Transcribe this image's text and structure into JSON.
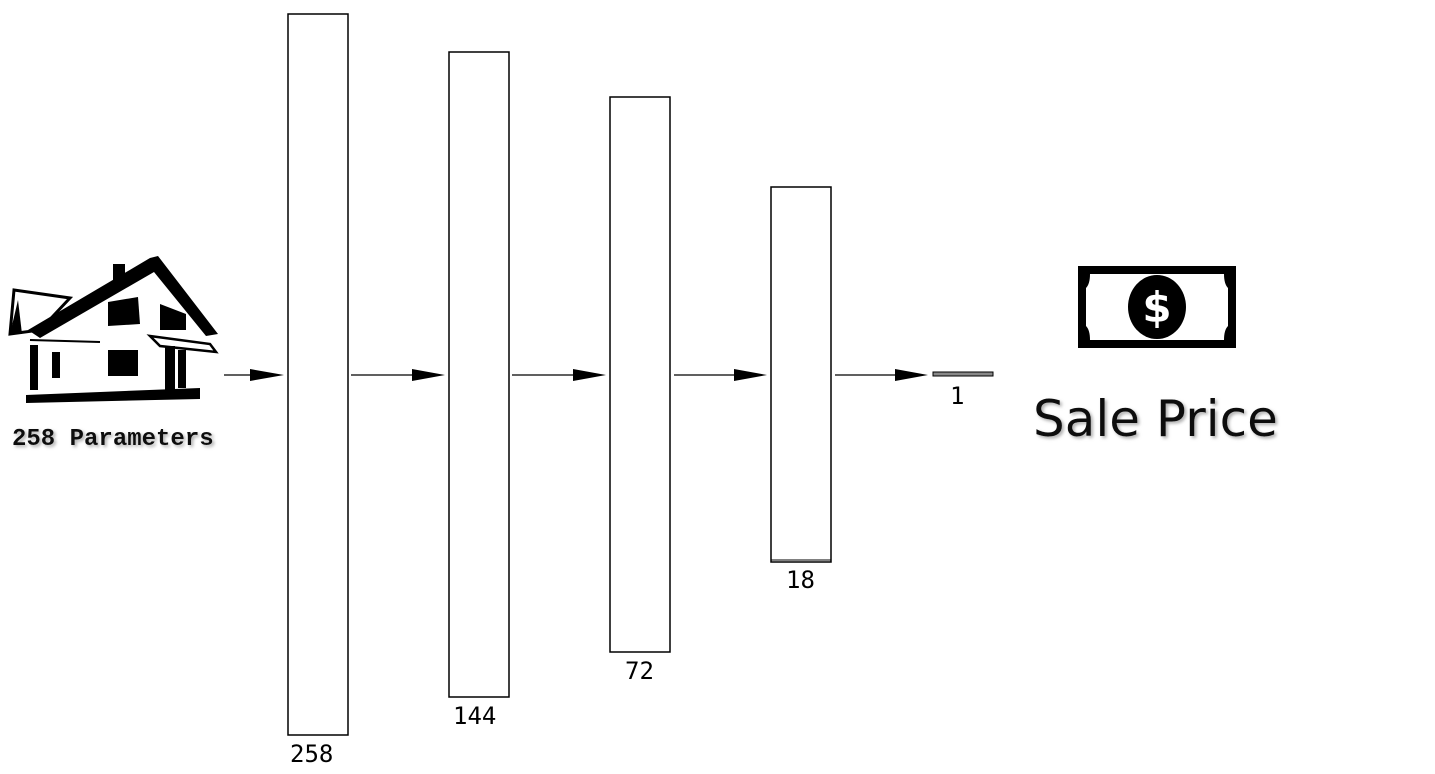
{
  "input": {
    "label": "258 Parameters",
    "icon": "house-icon"
  },
  "layers": [
    {
      "size": 258,
      "label": "258"
    },
    {
      "size": 144,
      "label": "144"
    },
    {
      "size": 72,
      "label": "72"
    },
    {
      "size": 18,
      "label": "18"
    },
    {
      "size": 1,
      "label": "1"
    }
  ],
  "output": {
    "label": "Sale Price",
    "icon": "dollar-bill-icon"
  }
}
